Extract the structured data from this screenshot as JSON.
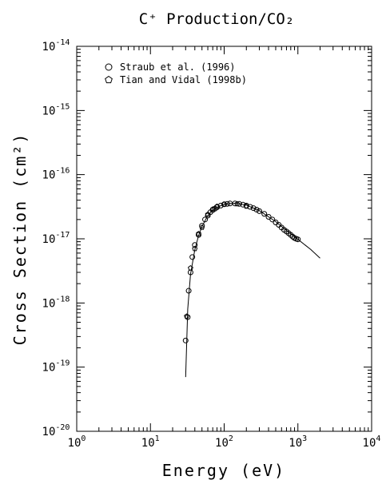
{
  "chart_data": {
    "type": "scatter",
    "title": "C⁺ Production/CO₂",
    "xlabel": "Energy (eV)",
    "ylabel": "Cross Section (cm²)",
    "xscale": "log",
    "yscale": "log",
    "xlim": [
      1,
      10000
    ],
    "ylim": [
      1e-20,
      1e-14
    ],
    "x_ticks": [
      {
        "base": "10",
        "exp": "0"
      },
      {
        "base": "10",
        "exp": "1"
      },
      {
        "base": "10",
        "exp": "2"
      },
      {
        "base": "10",
        "exp": "3"
      },
      {
        "base": "10",
        "exp": "4"
      }
    ],
    "y_ticks": [
      {
        "base": "10",
        "exp": "-20"
      },
      {
        "base": "10",
        "exp": "-19"
      },
      {
        "base": "10",
        "exp": "-18"
      },
      {
        "base": "10",
        "exp": "-17"
      },
      {
        "base": "10",
        "exp": "-16"
      },
      {
        "base": "10",
        "exp": "-15"
      },
      {
        "base": "10",
        "exp": "-14"
      }
    ],
    "legend_position": "top-left",
    "grid": false,
    "series": [
      {
        "name": "Straub et al. (1996)",
        "marker": "circle",
        "x": [
          30,
          32,
          33,
          35,
          37,
          40,
          45,
          50,
          55,
          60,
          65,
          70,
          75,
          80,
          90,
          100,
          110,
          120,
          140,
          160,
          180,
          200,
          225,
          250,
          275,
          300,
          350,
          400,
          450,
          500,
          550,
          600,
          650,
          700,
          750,
          800,
          850,
          900,
          950,
          1000
        ],
        "y": [
          2.6e-19,
          6e-19,
          1.55e-18,
          3e-18,
          5.2e-18,
          8e-18,
          1.15e-17,
          1.6e-17,
          2e-17,
          2.3e-17,
          2.6e-17,
          2.8e-17,
          2.95e-17,
          3.1e-17,
          3.3e-17,
          3.45e-17,
          3.5e-17,
          3.55e-17,
          3.55e-17,
          3.5e-17,
          3.4e-17,
          3.3e-17,
          3.15e-17,
          3e-17,
          2.85e-17,
          2.7e-17,
          2.45e-17,
          2.2e-17,
          2e-17,
          1.8e-17,
          1.65e-17,
          1.5e-17,
          1.38e-17,
          1.3e-17,
          1.22e-17,
          1.15e-17,
          1.08e-17,
          1.03e-17,
          1e-17,
          9.8e-18
        ]
      },
      {
        "name": "Tian and Vidal (1998b)",
        "marker": "pentagon",
        "x": [
          31,
          35,
          40,
          45,
          50,
          60,
          70,
          80,
          100,
          150,
          200
        ],
        "y": [
          6.2e-19,
          3.5e-18,
          7e-18,
          1.2e-17,
          1.5e-17,
          2.4e-17,
          2.9e-17,
          3.2e-17,
          3.45e-17,
          3.5e-17,
          3.2e-17
        ]
      }
    ],
    "fit_curve": {
      "x": [
        30,
        32,
        35,
        40,
        45,
        50,
        60,
        70,
        80,
        100,
        120,
        150,
        200,
        300,
        500,
        700,
        1000,
        1500,
        2000
      ],
      "y": [
        7e-20,
        8e-19,
        2.8e-18,
        6.8e-18,
        1.12e-17,
        1.55e-17,
        2.3e-17,
        2.8e-17,
        3.1e-17,
        3.45e-17,
        3.55e-17,
        3.55e-17,
        3.35e-17,
        2.75e-17,
        1.85e-17,
        1.35e-17,
        9.8e-18,
        6.8e-18,
        5e-18
      ]
    }
  }
}
